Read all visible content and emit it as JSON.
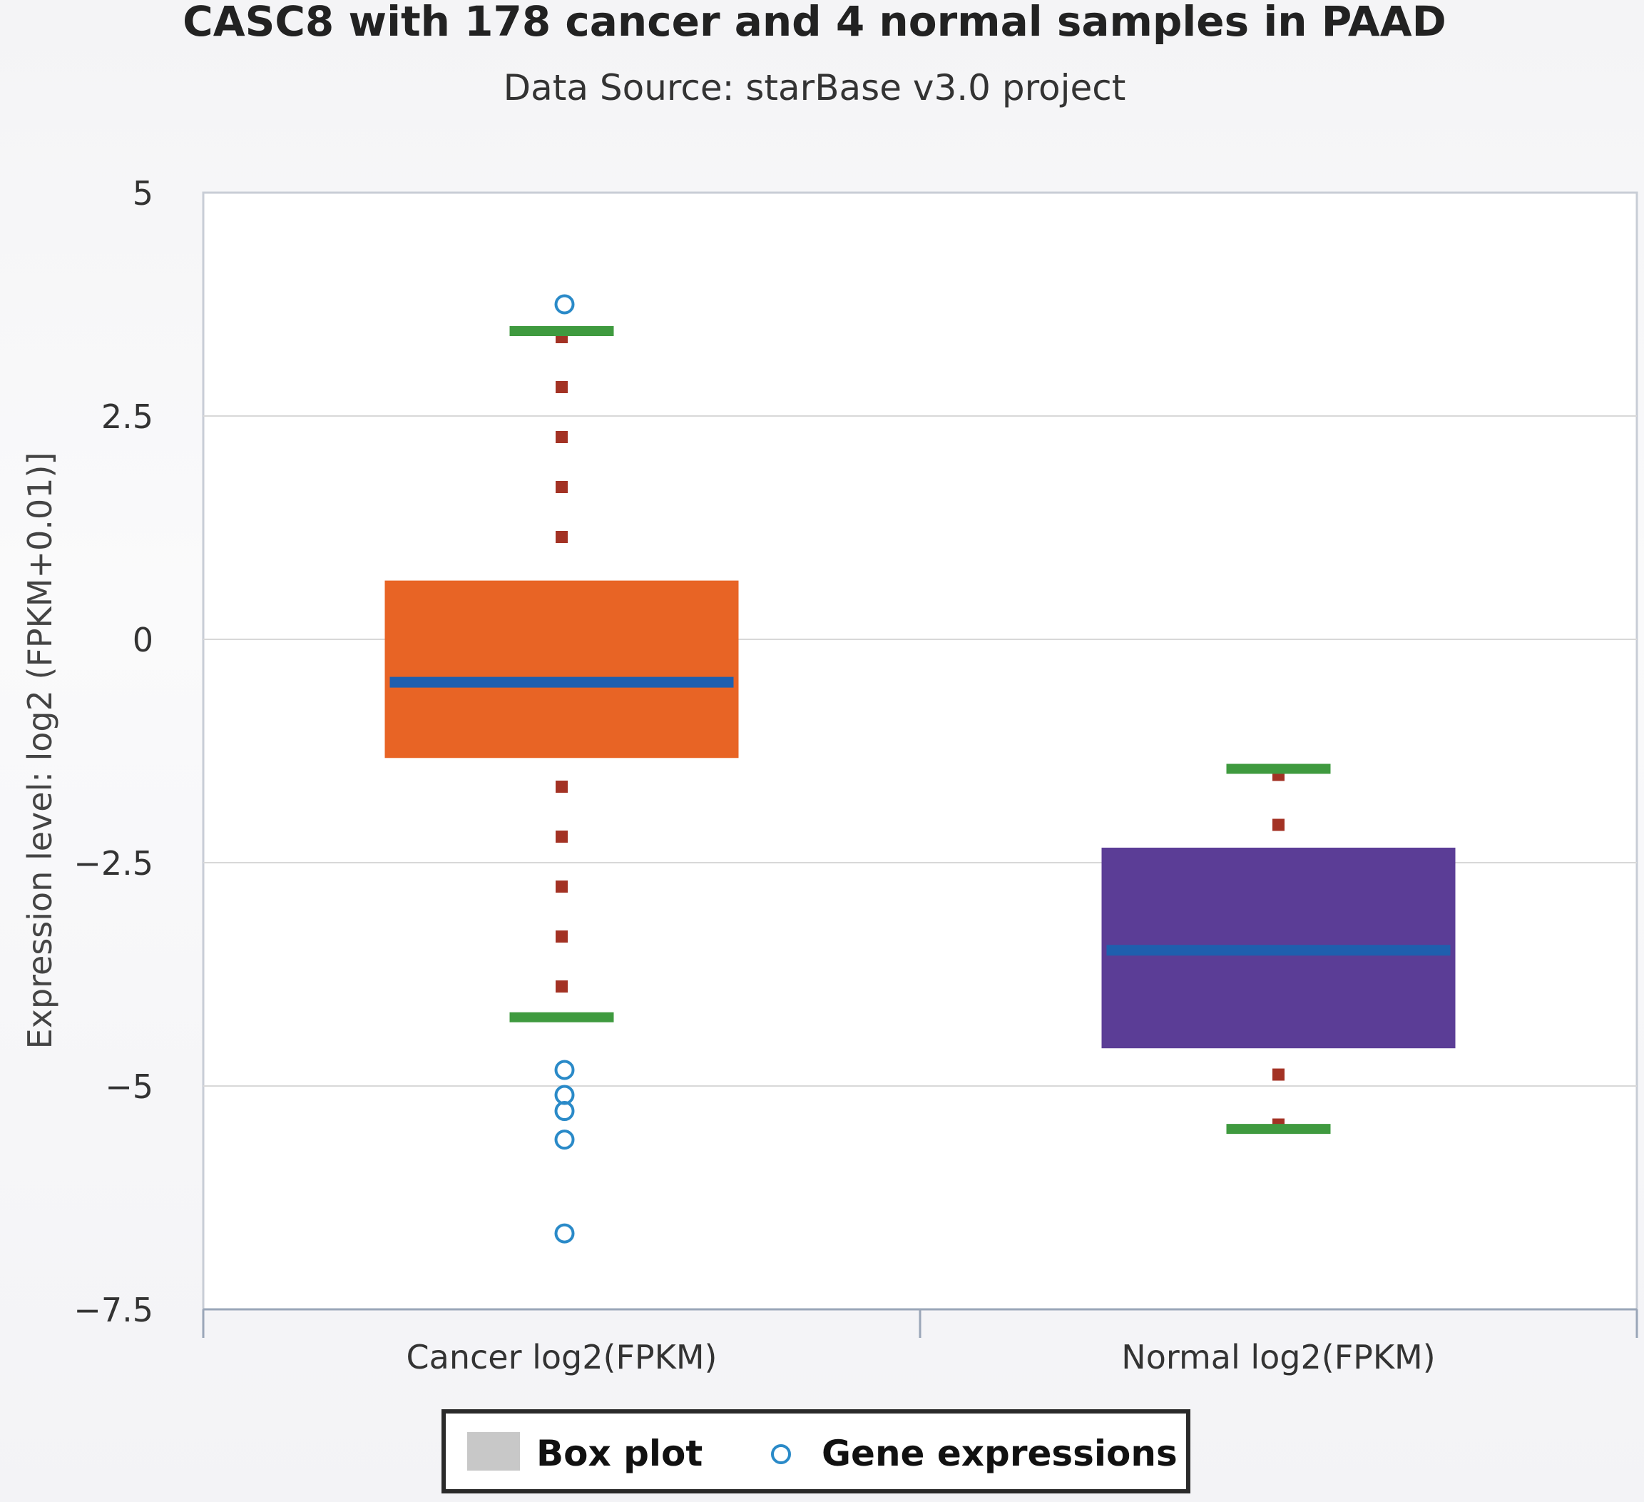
{
  "chart_data": {
    "type": "box",
    "title": "CASC8 with 178 cancer and 4 normal samples in PAAD",
    "subtitle": "Data Source: starBase v3.0 project",
    "ylabel": "Expression level: log2 (FPKM+0.01)]",
    "xlabel": "",
    "ylim": [
      -7.5,
      5
    ],
    "yticks": [
      5,
      2.5,
      0,
      -2.5,
      -5,
      -7.5
    ],
    "ytick_labels": [
      "5",
      "2.5",
      "0",
      "−2.5",
      "−5",
      "−7.5"
    ],
    "grid": true,
    "categories": [
      "Cancer log2(FPKM)",
      "Normal log2(FPKM)"
    ],
    "boxes": [
      {
        "name": "Cancer log2(FPKM)",
        "whisker_high": 3.45,
        "q3": 0.65,
        "median": -0.48,
        "q1": -1.32,
        "whisker_low": -4.23,
        "outliers": [
          3.75,
          -4.82,
          -5.1,
          -5.28,
          -5.6,
          -6.65
        ],
        "color": "#e86425"
      },
      {
        "name": "Normal log2(FPKM)",
        "whisker_high": -1.45,
        "q3": -2.34,
        "median": -3.48,
        "q1": -4.57,
        "whisker_low": -5.48,
        "outliers": [],
        "color": "#5b3d96"
      }
    ],
    "median_color": "#1f5fae",
    "whisker_color": "#3f9a3f",
    "stem_color": "#a33224",
    "outlier_color": "#2a8ac8",
    "legend": {
      "position": "bottom-center",
      "items": [
        {
          "label": "Box plot",
          "marker": "square",
          "color": "#c8c8c8"
        },
        {
          "label": "Gene expressions",
          "marker": "circle",
          "color": "#2a8ac8"
        }
      ]
    }
  }
}
